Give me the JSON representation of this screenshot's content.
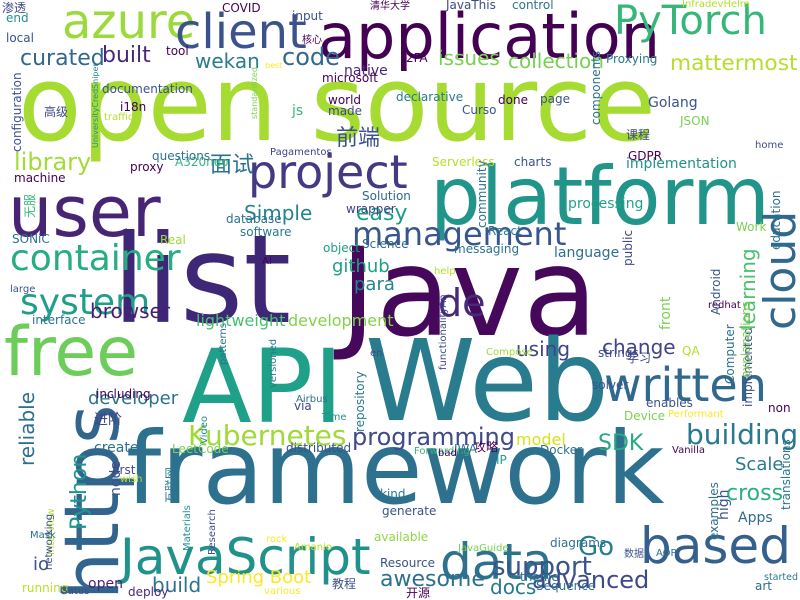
{
  "cloud": {
    "background": "#ffffff",
    "words": [
      {
        "t": "open source",
        "c": "#a6db31"
      },
      {
        "t": "Java",
        "c": "#45085a"
      },
      {
        "t": "framework",
        "c": "#2d718e"
      },
      {
        "t": "list",
        "c": "#3f2777"
      },
      {
        "t": "Web",
        "c": "#297b8e"
      },
      {
        "t": "API",
        "c": "#1fa088"
      },
      {
        "t": "platform",
        "c": "#22958b"
      },
      {
        "t": "https",
        "c": "#32658e"
      },
      {
        "t": "user",
        "c": "#482475"
      },
      {
        "t": "free",
        "c": "#6ccd5a"
      },
      {
        "t": "application",
        "c": "#440154"
      },
      {
        "t": "azure",
        "c": "#9bd93c"
      },
      {
        "t": "client",
        "c": "#3b528b"
      },
      {
        "t": "PyTorch",
        "c": "#35b779"
      },
      {
        "t": "JavaScript",
        "c": "#21918c"
      },
      {
        "t": "data",
        "c": "#2c718e"
      },
      {
        "t": "based",
        "c": "#355f8d"
      },
      {
        "t": "written",
        "c": "#30698e"
      },
      {
        "t": "project",
        "c": "#443983"
      },
      {
        "t": "container",
        "c": "#26ad81"
      },
      {
        "t": "cloud",
        "c": "#31688e"
      },
      {
        "t": "system",
        "c": "#1f9e89"
      },
      {
        "t": "de",
        "c": "#482878"
      },
      {
        "t": "management",
        "c": "#39568c"
      },
      {
        "t": "Kubernetes",
        "c": "#a0da39"
      },
      {
        "t": "building",
        "c": "#2a788e"
      },
      {
        "t": "programming",
        "c": "#3e4a89"
      },
      {
        "t": "SDK",
        "c": "#25ab82"
      },
      {
        "t": "Go",
        "c": "#277f8e"
      },
      {
        "t": "support",
        "c": "#3a548c"
      },
      {
        "t": "Spring Boot",
        "c": "#fde725"
      },
      {
        "t": "advanced",
        "c": "#3e4989"
      },
      {
        "t": "Python",
        "c": "#1f968b"
      },
      {
        "t": "awesome",
        "c": "#2d708e"
      },
      {
        "t": "curated",
        "c": "#31688e"
      },
      {
        "t": "built",
        "c": "#482979"
      },
      {
        "t": "wekan",
        "c": "#287c8e"
      },
      {
        "t": "code",
        "c": "#31688e"
      },
      {
        "t": "issues",
        "c": "#7ad151"
      },
      {
        "t": "collection",
        "c": "#75d054"
      },
      {
        "t": "mattermost",
        "c": "#b5de2b"
      },
      {
        "t": "library",
        "c": "#a5db36"
      },
      {
        "t": "面试",
        "c": "#2c728e"
      },
      {
        "t": "前端",
        "c": "#3b528b"
      },
      {
        "t": "easy",
        "c": "#1e9c89"
      },
      {
        "t": "Simple",
        "c": "#26828e"
      },
      {
        "t": "github",
        "c": "#1fa088"
      },
      {
        "t": "para",
        "c": "#25848e"
      },
      {
        "t": "browser",
        "c": "#481f70"
      },
      {
        "t": "lightweight",
        "c": "#46c06f"
      },
      {
        "t": "development",
        "c": "#81d34d"
      },
      {
        "t": "learning",
        "c": "#4ac16d"
      },
      {
        "t": "developer",
        "c": "#2c728e"
      },
      {
        "t": "reliable",
        "c": "#2d708e"
      },
      {
        "t": "model",
        "c": "#d8e219"
      },
      {
        "t": "cross",
        "c": "#2ab07f"
      },
      {
        "t": "Scale",
        "c": "#2a788e"
      },
      {
        "t": "change",
        "c": "#414487"
      },
      {
        "t": "using",
        "c": "#414487"
      },
      {
        "t": "docs",
        "c": "#2a788e"
      },
      {
        "t": "build",
        "c": "#2c728e"
      },
      {
        "t": "language",
        "c": "#2d708e"
      },
      {
        "t": "processing",
        "c": "#20a386"
      },
      {
        "t": "implementation",
        "c": "#21918c"
      },
      {
        "t": "front",
        "c": "#7ad151"
      },
      {
        "t": "io",
        "c": "#3b528b"
      },
      {
        "t": "create",
        "c": "#2d708e"
      },
      {
        "t": "open",
        "c": "#482475"
      },
      {
        "t": "node",
        "c": "#3b528b"
      },
      {
        "t": "native",
        "c": "#482878"
      },
      {
        "t": "microsoft",
        "c": "#440154"
      },
      {
        "t": "js",
        "c": "#35b779"
      },
      {
        "t": "Golang",
        "c": "#3b528b"
      },
      {
        "t": "Apps",
        "c": "#31688e"
      },
      {
        "t": "high",
        "c": "#3b528b"
      },
      {
        "t": "Docker",
        "c": "#2c728e"
      },
      {
        "t": "examples",
        "c": "#2c728e"
      },
      {
        "t": "first",
        "c": "#3e4a89"
      },
      {
        "t": "Resource",
        "c": "#3b528b"
      },
      {
        "t": "deploy",
        "c": "#482878"
      },
      {
        "t": "kind",
        "c": "#2a788e"
      },
      {
        "t": "generate",
        "c": "#3b528b"
      },
      {
        "t": "available",
        "c": "#8fd744"
      },
      {
        "t": "distributed",
        "c": "#3b528b"
      },
      {
        "t": "repository",
        "c": "#2a788e"
      },
      {
        "t": "including",
        "c": "#440154"
      },
      {
        "t": "进阶",
        "c": "#414487"
      },
      {
        "t": "React",
        "c": "#2a788e"
      },
      {
        "t": "messaging",
        "c": "#2d708e"
      },
      {
        "t": "public",
        "c": "#3e4a89"
      },
      {
        "t": "Work",
        "c": "#7ad151"
      },
      {
        "t": "Serverless",
        "c": "#b5de2b"
      },
      {
        "t": "community",
        "c": "#2c728e"
      },
      {
        "t": "Solution",
        "c": "#31688e"
      },
      {
        "t": "software",
        "c": "#2a788e"
      },
      {
        "t": "database",
        "c": "#2c728e"
      },
      {
        "t": "object",
        "c": "#1f9e89"
      },
      {
        "t": "wrapper",
        "c": "#414487"
      },
      {
        "t": "Science",
        "c": "#31688e"
      },
      {
        "t": "A320neo",
        "c": "#35b779"
      },
      {
        "t": "charts",
        "c": "#3b528b"
      },
      {
        "t": "JSON",
        "c": "#7ad151"
      },
      {
        "t": "components",
        "c": "#2c728e"
      },
      {
        "t": "page",
        "c": "#3b528b"
      },
      {
        "t": "done",
        "c": "#440154"
      },
      {
        "t": "Curso",
        "c": "#3b528b"
      },
      {
        "t": "made",
        "c": "#3e4a89"
      },
      {
        "t": "world",
        "c": "#440154"
      },
      {
        "t": "declarative",
        "c": "#2a788e"
      },
      {
        "t": "2FA",
        "c": "#440154"
      },
      {
        "t": "Proxying",
        "c": "#2a788e"
      },
      {
        "t": "GDPR",
        "c": "#440154"
      },
      {
        "t": "Android",
        "c": "#3b528b"
      },
      {
        "t": "help",
        "c": "#b5de2b"
      },
      {
        "t": "strings",
        "c": "#3e4a89"
      },
      {
        "t": "QA",
        "c": "#b5de2b"
      },
      {
        "t": "学习",
        "c": "#3e4a89"
      },
      {
        "t": "Compose",
        "c": "#a0da39"
      },
      {
        "t": "Device",
        "c": "#7ad151"
      },
      {
        "t": "enables",
        "c": "#3b528b"
      },
      {
        "t": "non",
        "c": "#440154"
      },
      {
        "t": "Performant",
        "c": "#fde725"
      },
      {
        "t": "Vanilla",
        "c": "#440154"
      },
      {
        "t": "Forwarding",
        "c": "#35b779"
      },
      {
        "t": "攻略",
        "c": "#440154"
      },
      {
        "t": "JWA",
        "c": "#2c728e"
      },
      {
        "t": "IP",
        "c": "#1f9e89"
      },
      {
        "t": "bad",
        "c": "#440154"
      },
      {
        "t": "LeetCode",
        "c": "#7ad151"
      },
      {
        "t": "Time",
        "c": "#21918c"
      },
      {
        "t": "via",
        "c": "#414487"
      },
      {
        "t": "Airbus",
        "c": "#2c728e"
      },
      {
        "t": "versioned",
        "c": "#2a788e"
      },
      {
        "t": "en",
        "c": "#3e4a89"
      },
      {
        "t": "translations",
        "c": "#2a788e"
      },
      {
        "t": "Computer",
        "c": "#2c728e"
      },
      {
        "t": "implemented",
        "c": "#3e4a89"
      },
      {
        "t": "education",
        "c": "#2c728e"
      },
      {
        "t": "home",
        "c": "#3e4a89"
      },
      {
        "t": "art",
        "c": "#31688e"
      },
      {
        "t": "started",
        "c": "#2a788e"
      },
      {
        "t": "theme",
        "c": "#2c728e"
      },
      {
        "t": "Sequence",
        "c": "#2c728e"
      },
      {
        "t": "教程",
        "c": "#3b528b"
      },
      {
        "t": "开源",
        "c": "#440154"
      },
      {
        "t": "diagrams",
        "c": "#2c728e"
      },
      {
        "t": "数据",
        "c": "#3b528b"
      },
      {
        "t": "AOP",
        "c": "#2c728e"
      },
      {
        "t": "JavaGuide",
        "c": "#7ad151"
      },
      {
        "t": "various",
        "c": "#fde725"
      },
      {
        "t": "running",
        "c": "#b5de2b"
      },
      {
        "t": "Gatus",
        "c": "#3e4a89"
      },
      {
        "t": "Interview",
        "c": "#b5de2b"
      },
      {
        "t": "Mask",
        "c": "#2c728e"
      },
      {
        "t": "Materials",
        "c": "#21918c"
      },
      {
        "t": "Research",
        "c": "#3b528b"
      },
      {
        "t": "rock",
        "c": "#fde725"
      },
      {
        "t": "Amanio",
        "c": "#b5de2b"
      },
      {
        "t": "互联网",
        "c": "#2a788e"
      },
      {
        "t": "networking",
        "c": "#3e4a89"
      },
      {
        "t": "wish",
        "c": "#b5de2b"
      },
      {
        "t": "Video",
        "c": "#21918c"
      },
      {
        "t": "patterns",
        "c": "#2c728e"
      },
      {
        "t": "Al",
        "c": "#440154"
      },
      {
        "t": "Real",
        "c": "#a0da39"
      },
      {
        "t": "SONiC",
        "c": "#2c728e"
      },
      {
        "t": "large",
        "c": "#3b528b"
      },
      {
        "t": "interface",
        "c": "#2c728e"
      },
      {
        "t": "machine",
        "c": "#440154"
      },
      {
        "t": "无服",
        "c": "#35b779"
      },
      {
        "t": "i18n",
        "c": "#440154"
      },
      {
        "t": "documentation",
        "c": "#3b528b"
      },
      {
        "t": "traffic",
        "c": "#b5de2b"
      },
      {
        "t": "configuration",
        "c": "#3b528b"
      },
      {
        "t": "高级",
        "c": "#3e4a89"
      },
      {
        "t": "questions",
        "c": "#2c728e"
      },
      {
        "t": "proxy",
        "c": "#440154"
      },
      {
        "t": "Pagamentos",
        "c": "#414487"
      },
      {
        "t": "tool",
        "c": "#440154"
      },
      {
        "t": "best",
        "c": "#fde725"
      },
      {
        "t": "standardized",
        "c": "#7ad151"
      },
      {
        "t": "UniversityCredSniper",
        "c": "#21918c"
      },
      {
        "t": "local",
        "c": "#3b528b"
      },
      {
        "t": "end",
        "c": "#21918c"
      },
      {
        "t": "渗透",
        "c": "#3e4a89"
      },
      {
        "t": "COVID",
        "c": "#440154"
      },
      {
        "t": "input",
        "c": "#3b528b"
      },
      {
        "t": "核心",
        "c": "#440154"
      },
      {
        "t": "清华大学",
        "c": "#440154"
      },
      {
        "t": "JavaThis",
        "c": "#3e4a89"
      },
      {
        "t": "control",
        "c": "#2c728e"
      },
      {
        "t": "InfradevHelm",
        "c": "#b5de2b"
      },
      {
        "t": "课程",
        "c": "#3e4a89"
      },
      {
        "t": "explanations",
        "c": "#7ad151"
      },
      {
        "t": "functionalityAn",
        "c": "#3e4a89"
      },
      {
        "t": "redhat",
        "c": "#440154"
      },
      {
        "t": "solver",
        "c": "#3b528b"
      }
    ]
  }
}
